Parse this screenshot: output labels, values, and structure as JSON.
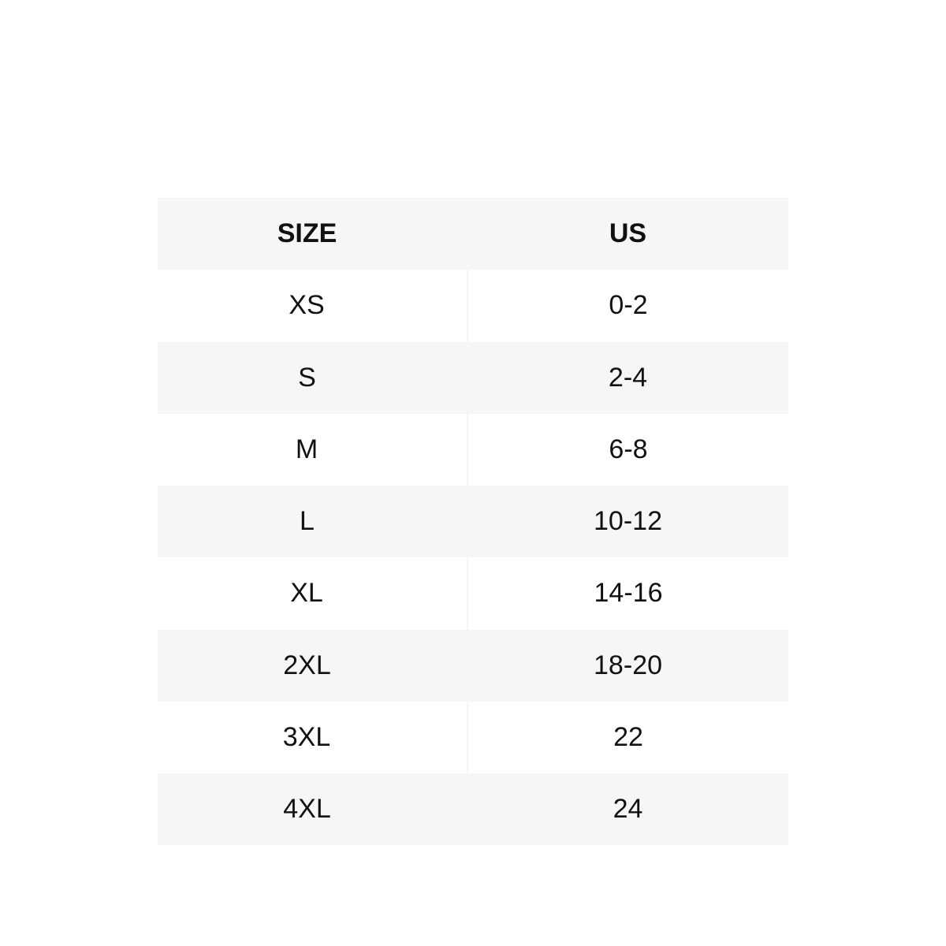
{
  "table": {
    "headers": [
      "SIZE",
      "US"
    ],
    "rows": [
      [
        "XS",
        "0-2"
      ],
      [
        "S",
        "2-4"
      ],
      [
        "M",
        "6-8"
      ],
      [
        "L",
        "10-12"
      ],
      [
        "XL",
        "14-16"
      ],
      [
        "2XL",
        "18-20"
      ],
      [
        "3XL",
        "22"
      ],
      [
        "4XL",
        "24"
      ]
    ]
  },
  "colors": {
    "shaded_row": "#f6f6f6",
    "text": "#111111"
  }
}
